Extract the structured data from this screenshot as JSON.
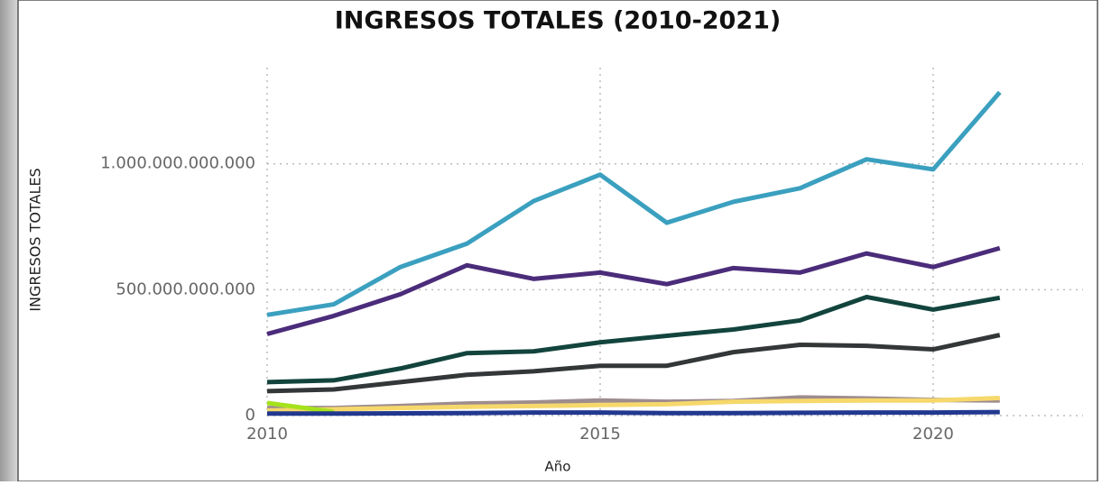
{
  "chart_data": {
    "type": "line",
    "title": "INGRESOS TOTALES (2010-2021)",
    "x_label": "Año",
    "y_label": "INGRESOS TOTALES",
    "x": [
      2010,
      2011,
      2012,
      2013,
      2014,
      2015,
      2016,
      2017,
      2018,
      2019,
      2020,
      2021
    ],
    "series": [
      {
        "color": "#9e8c8e",
        "values": [
          30000000000,
          30000000000,
          38000000000,
          48000000000,
          52000000000,
          60000000000,
          55000000000,
          58000000000,
          72000000000,
          68000000000,
          62000000000,
          60000000000
        ]
      },
      {
        "color": "#f6d86b",
        "values": [
          20000000000,
          25000000000,
          30000000000,
          35000000000,
          38000000000,
          42000000000,
          45000000000,
          55000000000,
          58000000000,
          60000000000,
          60000000000,
          70000000000
        ]
      },
      {
        "color": "#a6e21c",
        "values": [
          50000000000,
          15000000000,
          null,
          null,
          null,
          null,
          null,
          null,
          null,
          null,
          null,
          null
        ]
      },
      {
        "color": "#22388f",
        "values": [
          8000000000,
          8000000000,
          9000000000,
          10000000000,
          12000000000,
          12000000000,
          10000000000,
          10000000000,
          11000000000,
          12000000000,
          12000000000,
          14000000000
        ]
      },
      {
        "color": "#333738",
        "values": [
          97000000000,
          104000000000,
          133000000000,
          162000000000,
          176000000000,
          198000000000,
          198000000000,
          252000000000,
          281000000000,
          277000000000,
          263000000000,
          320000000000
        ]
      },
      {
        "color": "#12443d",
        "values": [
          133000000000,
          140000000000,
          187000000000,
          248000000000,
          255000000000,
          291000000000,
          317000000000,
          342000000000,
          378000000000,
          471000000000,
          421000000000,
          468000000000
        ]
      },
      {
        "color": "#4b2c7a",
        "values": [
          324000000000,
          396000000000,
          482000000000,
          597000000000,
          543000000000,
          568000000000,
          522000000000,
          586000000000,
          568000000000,
          644000000000,
          590000000000,
          665000000000
        ]
      },
      {
        "color": "#3ba0bf",
        "values": [
          400000000000,
          442000000000,
          590000000000,
          683000000000,
          852000000000,
          957000000000,
          766000000000,
          849000000000,
          903000000000,
          1018000000000,
          978000000000,
          1284000000000
        ]
      }
    ],
    "xlim": [
      2010,
      2022.25
    ],
    "xticks": [
      2010,
      2015,
      2020
    ],
    "ylim": [
      0,
      1400000000000
    ],
    "yticks": [
      0,
      {
        "value": 500000000000,
        "label": "500.000.000.000"
      },
      {
        "value": 1000000000000,
        "label": "1.000.000.000.000"
      }
    ],
    "grid": true
  }
}
